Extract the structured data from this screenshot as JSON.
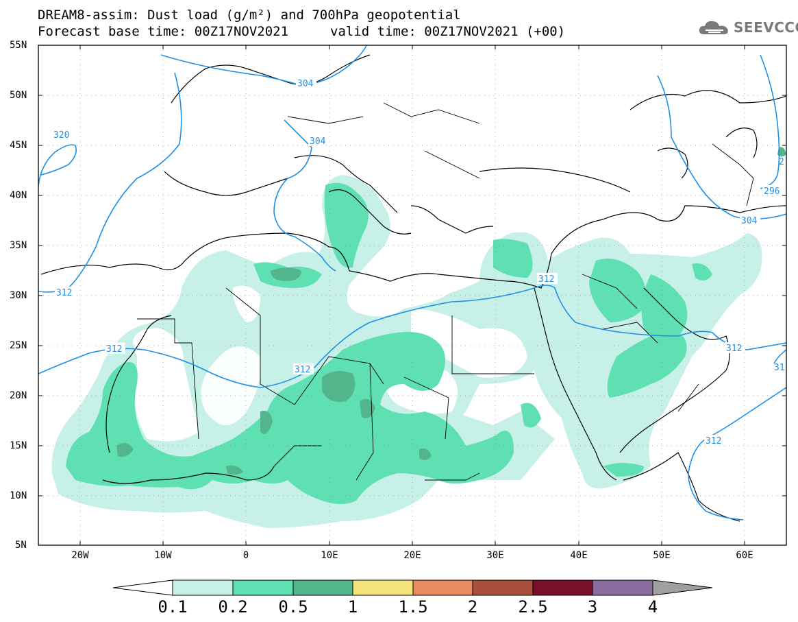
{
  "title": {
    "line1": "DREAM8-assim: Dust load (g/m²) and 700hPa geopotential",
    "line2a": "Forecast base time: 00Z17NOV2021",
    "line2b": "valid time: 00Z17NOV2021 (+00)"
  },
  "logo": {
    "icon": "cloud-logo-icon",
    "text": "SEEVCCC"
  },
  "axes": {
    "lat_labels": [
      "55N",
      "50N",
      "45N",
      "40N",
      "35N",
      "30N",
      "25N",
      "20N",
      "15N",
      "10N",
      "5N"
    ],
    "lon_labels": [
      "20W",
      "10W",
      "0",
      "10E",
      "20E",
      "30E",
      "40E",
      "50E",
      "60E"
    ],
    "lat_range": [
      5,
      55
    ],
    "lon_range": [
      -25,
      65
    ]
  },
  "contours": {
    "labels": [
      "304",
      "304",
      "320",
      "312",
      "312",
      "312",
      "312",
      "312",
      "296",
      "304",
      "312",
      "312",
      "31",
      "2"
    ]
  },
  "colorbar": {
    "labels": [
      "0.1",
      "0.2",
      "0.5",
      "1",
      "1.5",
      "2",
      "2.5",
      "3",
      "4"
    ],
    "colors": [
      "#ffffff",
      "#c7f0e8",
      "#5fe0b2",
      "#52b58c",
      "#f4e47a",
      "#e88b5f",
      "#a94f3d",
      "#7a0f2a",
      "#8c6da0",
      "#a0a0a0"
    ]
  },
  "legend_colors": {
    "dust_0_1": "#c7f0e8",
    "dust_0_2": "#5fe0b2",
    "dust_0_5": "#52b58c",
    "dust_1": "#f4e47a",
    "contour": "#1e90e6"
  }
}
